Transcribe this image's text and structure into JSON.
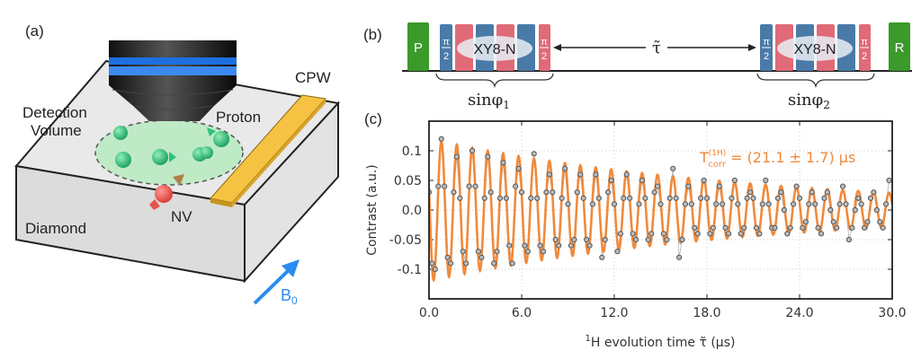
{
  "panel_a": {
    "label": "(a)",
    "detection_volume_line1": "Detection",
    "detection_volume_line2": "Volume",
    "proton": "Proton",
    "cpw": "CPW",
    "nv": "NV",
    "diamond": "Diamond",
    "b0": "B",
    "b0_sub": "0",
    "colors": {
      "proton": "#2ec27e",
      "nv": "#e8534f",
      "cpw": "#f5c242",
      "b0": "#2a8cf0",
      "objective_band": "#1e6fe0",
      "detection_volume": "#bfeac6"
    }
  },
  "panel_b": {
    "label": "(b)",
    "p_pulse": "P",
    "r_pulse": "R",
    "pi_half_num": "π",
    "pi_half_den": "2",
    "xy8_left": "XY8-N",
    "xy8_right": "XY8-N",
    "tau": "τ̃",
    "sin_phi1": "sinφ",
    "sin_phi1_sub": "1",
    "sin_phi2": "sinφ",
    "sin_phi2_sub": "2",
    "colors": {
      "readout": "#3a9a2a",
      "blue_pulse": "#4a7aa8",
      "red_pulse": "#e06a78"
    }
  },
  "panel_c": {
    "label": "(c)"
  },
  "chart_data": {
    "type": "scatter",
    "xlabel_prefix": "1",
    "xlabel": "H evolution time τ̃ (μs)",
    "ylabel": "Contrast (a.u.)",
    "xlim": [
      0,
      30
    ],
    "ylim": [
      -0.15,
      0.15
    ],
    "xticks": [
      "0.0",
      "6.0",
      "12.0",
      "18.0",
      "24.0",
      "30.0"
    ],
    "yticks": [
      "0.1",
      "0.05",
      "0.0",
      "-0.05",
      "-0.1"
    ],
    "grid": true,
    "annotation": {
      "main": "T",
      "sup": "(1H)",
      "sub": "corr",
      "rest": " = (21.1 ± 1.7) μs"
    },
    "fit": {
      "type": "damped-cosine",
      "amplitude": 0.12,
      "frequency_MHz": 1.0,
      "T_corr_us": 21.1,
      "t_peak_us": 0.8,
      "color": "#f08a3c"
    },
    "points_color": "#555555",
    "x": [
      0,
      0.2,
      0.4,
      0.6,
      0.8,
      1,
      1.2,
      1.4,
      1.6,
      1.8,
      2,
      2.2,
      2.4,
      2.6,
      2.8,
      3,
      3.2,
      3.4,
      3.6,
      3.8,
      4,
      4.2,
      4.4,
      4.6,
      4.8,
      5,
      5.2,
      5.4,
      5.6,
      5.8,
      6,
      6.2,
      6.4,
      6.6,
      6.8,
      7,
      7.2,
      7.4,
      7.6,
      7.8,
      8,
      8.2,
      8.4,
      8.6,
      8.8,
      9,
      9.2,
      9.4,
      9.6,
      9.8,
      10,
      10.2,
      10.4,
      10.6,
      10.8,
      11,
      11.2,
      11.4,
      11.6,
      11.8,
      12,
      12.2,
      12.4,
      12.6,
      12.8,
      13,
      13.2,
      13.4,
      13.6,
      13.8,
      14,
      14.2,
      14.4,
      14.6,
      14.8,
      15,
      15.2,
      15.4,
      15.6,
      15.8,
      16,
      16.2,
      16.4,
      16.6,
      16.8,
      17,
      17.2,
      17.4,
      17.6,
      17.8,
      18,
      18.2,
      18.4,
      18.6,
      18.8,
      19,
      19.2,
      19.4,
      19.6,
      19.8,
      20,
      20.2,
      20.4,
      20.6,
      20.8,
      21,
      21.2,
      21.4,
      21.6,
      21.8,
      22,
      22.2,
      22.4,
      22.6,
      22.8,
      23,
      23.2,
      23.4,
      23.6,
      23.8,
      24,
      24.2,
      24.4,
      24.6,
      24.8,
      25,
      25.2,
      25.4,
      25.6,
      25.8,
      26,
      26.2,
      26.4,
      26.6,
      26.8,
      27,
      27.2,
      27.4,
      27.6,
      27.8,
      28,
      28.2,
      28.4,
      28.6,
      28.8,
      29,
      29.2,
      29.4,
      29.6,
      29.8
    ],
    "y": [
      0.03,
      -0.09,
      -0.1,
      0.04,
      0.12,
      0.04,
      -0.08,
      -0.09,
      0.03,
      0.09,
      0.02,
      -0.07,
      -0.09,
      0.04,
      0.1,
      0.04,
      -0.07,
      -0.08,
      0.02,
      0.09,
      0.03,
      -0.09,
      -0.07,
      0.02,
      0.08,
      0.02,
      -0.06,
      -0.09,
      0.04,
      0.07,
      0.03,
      -0.06,
      -0.07,
      0.02,
      0.095,
      0.02,
      -0.06,
      -0.07,
      0.03,
      0.06,
      0.03,
      -0.05,
      -0.06,
      0.02,
      0.07,
      0.01,
      -0.06,
      -0.05,
      0.03,
      0.06,
      0.02,
      -0.05,
      -0.06,
      0.01,
      0.06,
      0.02,
      -0.08,
      -0.05,
      0.03,
      0.05,
      0.01,
      -0.07,
      -0.04,
      0.02,
      0.06,
      0.02,
      -0.04,
      -0.05,
      0.01,
      0.05,
      0.02,
      -0.05,
      -0.04,
      0.03,
      0.04,
      0.01,
      -0.04,
      -0.05,
      0.02,
      0.07,
      0.02,
      -0.08,
      -0.05,
      0.01,
      0.04,
      0.01,
      -0.03,
      -0.04,
      0.02,
      0.05,
      0.02,
      -0.04,
      -0.03,
      0.01,
      0.04,
      0.01,
      -0.03,
      -0.04,
      0.02,
      0.05,
      0.01,
      -0.04,
      -0.03,
      0.02,
      0.03,
      0.02,
      -0.03,
      -0.04,
      0.01,
      0.05,
      0.01,
      -0.03,
      -0.03,
      0.02,
      0.03,
      0.0,
      -0.04,
      -0.03,
      0.01,
      0.04,
      0.02,
      -0.03,
      -0.02,
      0.01,
      0.03,
      0.01,
      -0.03,
      -0.04,
      0.02,
      0.03,
      0.0,
      -0.02,
      -0.03,
      0.01,
      0.04,
      0.01,
      -0.05,
      -0.03,
      0.0,
      0.02,
      0.01,
      -0.03,
      -0.02,
      0.02,
      0.03,
      0.0,
      -0.02,
      -0.03,
      0.01,
      0.05
    ]
  }
}
